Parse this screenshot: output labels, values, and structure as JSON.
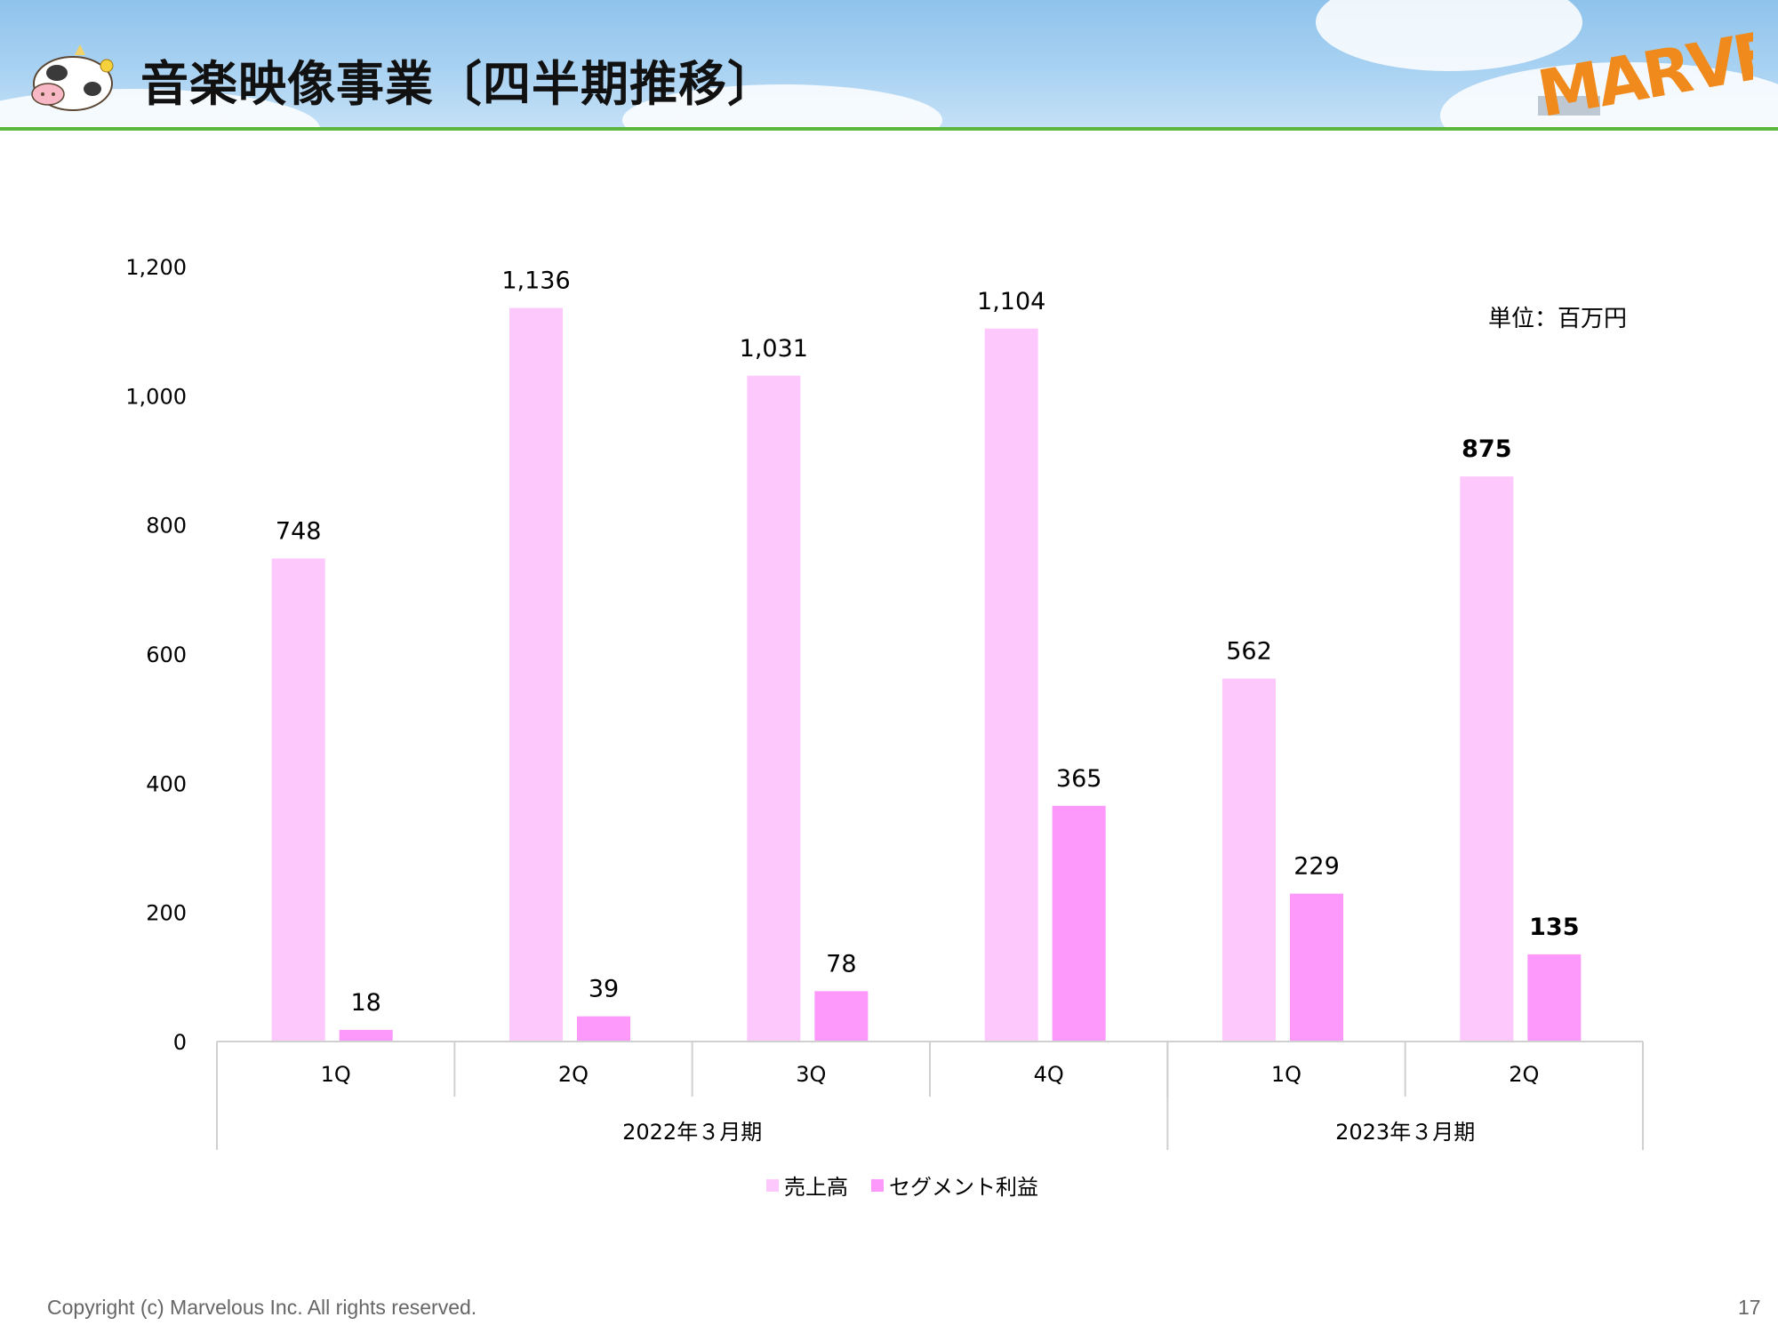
{
  "header": {
    "title": "音楽映像事業〔四半期推移〕",
    "logo_text": "MARVELOUS!"
  },
  "unit_label": "単位：百万円",
  "footer": {
    "copyright": "Copyright (c) Marvelous Inc. All rights reserved.",
    "page_number": "17"
  },
  "colors": {
    "sales": "#fdc8fb",
    "profit": "#fc99fa",
    "header_rule": "#5cb83d",
    "logo": "#f08a1c"
  },
  "chart_data": {
    "type": "bar",
    "categories": [
      "1Q",
      "2Q",
      "3Q",
      "4Q",
      "1Q",
      "2Q"
    ],
    "category_display": [
      "1Q",
      "2Q",
      "3Q",
      "4Q",
      "1Q",
      "2Q"
    ],
    "groups": [
      {
        "label": "2022年３月期",
        "span": 4
      },
      {
        "label": "2023年３月期",
        "span": 2
      }
    ],
    "series": [
      {
        "name": "売上高",
        "values": [
          748,
          1136,
          1031,
          1104,
          562,
          875
        ],
        "value_labels": [
          "748",
          "1,136",
          "1,031",
          "1,104",
          "562",
          "875"
        ]
      },
      {
        "name": "セグメント利益",
        "values": [
          18,
          39,
          78,
          365,
          229,
          135
        ],
        "value_labels": [
          "18",
          "39",
          "78",
          "365",
          "229",
          "135"
        ]
      }
    ],
    "bold_labels_category_index": 5,
    "ylim": [
      0,
      1200
    ],
    "yticks": [
      0,
      200,
      400,
      600,
      800,
      1000,
      1200
    ],
    "ytick_labels": [
      "0",
      "200",
      "400",
      "600",
      "800",
      "1,000",
      "1,200"
    ],
    "legend_position": "bottom",
    "grid": false
  }
}
